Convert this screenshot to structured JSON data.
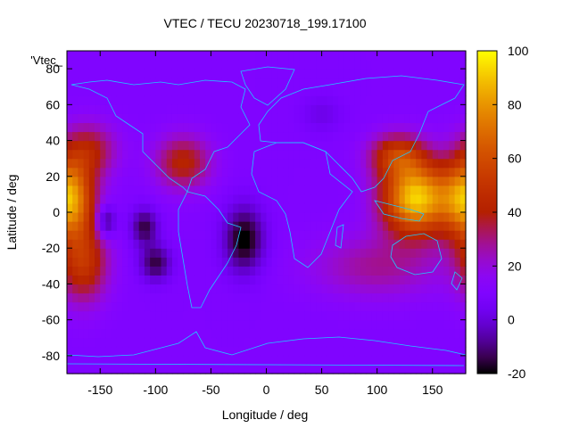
{
  "chart_data": {
    "type": "heatmap",
    "title": "VTEC / TECU 20230718_199.17100",
    "xlabel": "Longitude / deg",
    "ylabel": "Latitude / deg",
    "legend_label": "'Vtec_",
    "xlim": [
      -180,
      180
    ],
    "ylim": [
      -90,
      90
    ],
    "x_ticks": [
      -150,
      -100,
      -50,
      0,
      50,
      100,
      150
    ],
    "y_ticks": [
      -80,
      -60,
      -40,
      -20,
      0,
      20,
      40,
      60,
      80
    ],
    "colorbar": {
      "range": [
        -20,
        100
      ],
      "ticks": [
        -20,
        0,
        20,
        40,
        60,
        80,
        100
      ],
      "palette": "gnuplot-black-blue-purple-red-orange-yellow"
    },
    "background_level": 10,
    "features": [
      {
        "name": "pacific-east-crest",
        "lon": -178,
        "lat": 8,
        "peak": 72,
        "slon": 22,
        "slat": 22
      },
      {
        "name": "pacific-east-north",
        "lon": -160,
        "lat": 35,
        "peak": 28,
        "slon": 25,
        "slat": 15
      },
      {
        "name": "pacific-east-south",
        "lon": -165,
        "lat": -28,
        "peak": 38,
        "slon": 22,
        "slat": 22
      },
      {
        "name": "americas-north",
        "lon": -75,
        "lat": 28,
        "peak": 32,
        "slon": 25,
        "slat": 15
      },
      {
        "name": "asia-crest",
        "lon": 135,
        "lat": 8,
        "peak": 82,
        "slon": 30,
        "slat": 20
      },
      {
        "name": "east-asia",
        "lon": 118,
        "lat": 32,
        "peak": 38,
        "slon": 25,
        "slat": 12
      },
      {
        "name": "australia-band",
        "lon": 100,
        "lat": -30,
        "peak": 18,
        "slon": 60,
        "slat": 18
      },
      {
        "name": "hole-south-atlantic",
        "lon": -20,
        "lat": -15,
        "peak": -32,
        "slon": 18,
        "slat": 18
      },
      {
        "name": "hole-pacific-1",
        "lon": -110,
        "lat": -8,
        "peak": -25,
        "slon": 12,
        "slat": 10
      },
      {
        "name": "hole-pacific-2",
        "lon": -100,
        "lat": -28,
        "peak": -25,
        "slon": 14,
        "slat": 10
      },
      {
        "name": "hole-siberia",
        "lon": 50,
        "lat": 55,
        "peak": -8,
        "slon": 18,
        "slat": 10
      },
      {
        "name": "ring-low-pacific",
        "lon": -145,
        "lat": -5,
        "peak": -25,
        "slon": 9,
        "slat": 9
      }
    ]
  }
}
